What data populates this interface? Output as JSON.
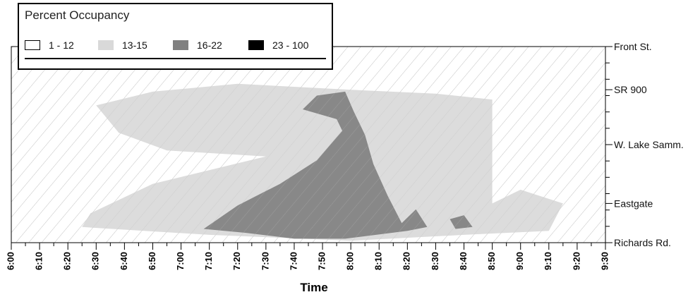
{
  "chart_data": {
    "type": "heatmap",
    "title": "",
    "xlabel": "Time",
    "ylabel": "",
    "x_ticks": [
      "6:00",
      "6:10",
      "6:20",
      "6:30",
      "6:40",
      "6:50",
      "7:00",
      "7:10",
      "7:20",
      "7:30",
      "7:40",
      "7:50",
      "8:00",
      "8:10",
      "8:20",
      "8:30",
      "8:40",
      "8:50",
      "9:00",
      "9:10",
      "9:20",
      "9:30"
    ],
    "x_range_minutes": [
      0,
      210
    ],
    "y_location_labels": [
      {
        "label": "Front St.",
        "pos": 0.0
      },
      {
        "label": "SR 900",
        "pos": 0.22
      },
      {
        "label": "W. Lake Samm.",
        "pos": 0.5
      },
      {
        "label": "Eastgate",
        "pos": 0.8
      },
      {
        "label": "Richards Rd.",
        "pos": 1.0
      }
    ],
    "legend": {
      "title": "Percent Occupancy",
      "entries": [
        {
          "label": "1 - 12",
          "color": "#ffffff"
        },
        {
          "label": "13-15",
          "color": "#d9d9d9"
        },
        {
          "label": "16-22",
          "color": "#808080"
        },
        {
          "label": "23 - 100",
          "color": "#000000"
        }
      ]
    },
    "regions": [
      {
        "category": "13-15",
        "points": [
          [
            30,
            0.3
          ],
          [
            50,
            0.23
          ],
          [
            80,
            0.19
          ],
          [
            120,
            0.22
          ],
          [
            150,
            0.24
          ],
          [
            170,
            0.27
          ],
          [
            170,
            0.8
          ],
          [
            180,
            0.73
          ],
          [
            195,
            0.8
          ],
          [
            190,
            0.94
          ],
          [
            160,
            0.96
          ],
          [
            120,
            0.99
          ],
          [
            70,
            0.96
          ],
          [
            25,
            0.92
          ],
          [
            28,
            0.85
          ],
          [
            50,
            0.7
          ],
          [
            90,
            0.56
          ],
          [
            55,
            0.53
          ],
          [
            38,
            0.44
          ]
        ]
      },
      {
        "category": "16-22",
        "points": [
          [
            103,
            0.32
          ],
          [
            108,
            0.25
          ],
          [
            118,
            0.23
          ],
          [
            121,
            0.33
          ],
          [
            125,
            0.45
          ],
          [
            128,
            0.6
          ],
          [
            133,
            0.76
          ],
          [
            138,
            0.9
          ],
          [
            143,
            0.83
          ],
          [
            147,
            0.92
          ],
          [
            140,
            0.94
          ],
          [
            118,
            0.98
          ],
          [
            100,
            0.98
          ],
          [
            83,
            0.95
          ],
          [
            68,
            0.93
          ],
          [
            80,
            0.81
          ],
          [
            95,
            0.7
          ],
          [
            108,
            0.58
          ],
          [
            117,
            0.43
          ],
          [
            115,
            0.37
          ]
        ]
      },
      {
        "category": "16-22",
        "points": [
          [
            155,
            0.88
          ],
          [
            160,
            0.86
          ],
          [
            163,
            0.92
          ],
          [
            157,
            0.93
          ]
        ]
      }
    ]
  }
}
